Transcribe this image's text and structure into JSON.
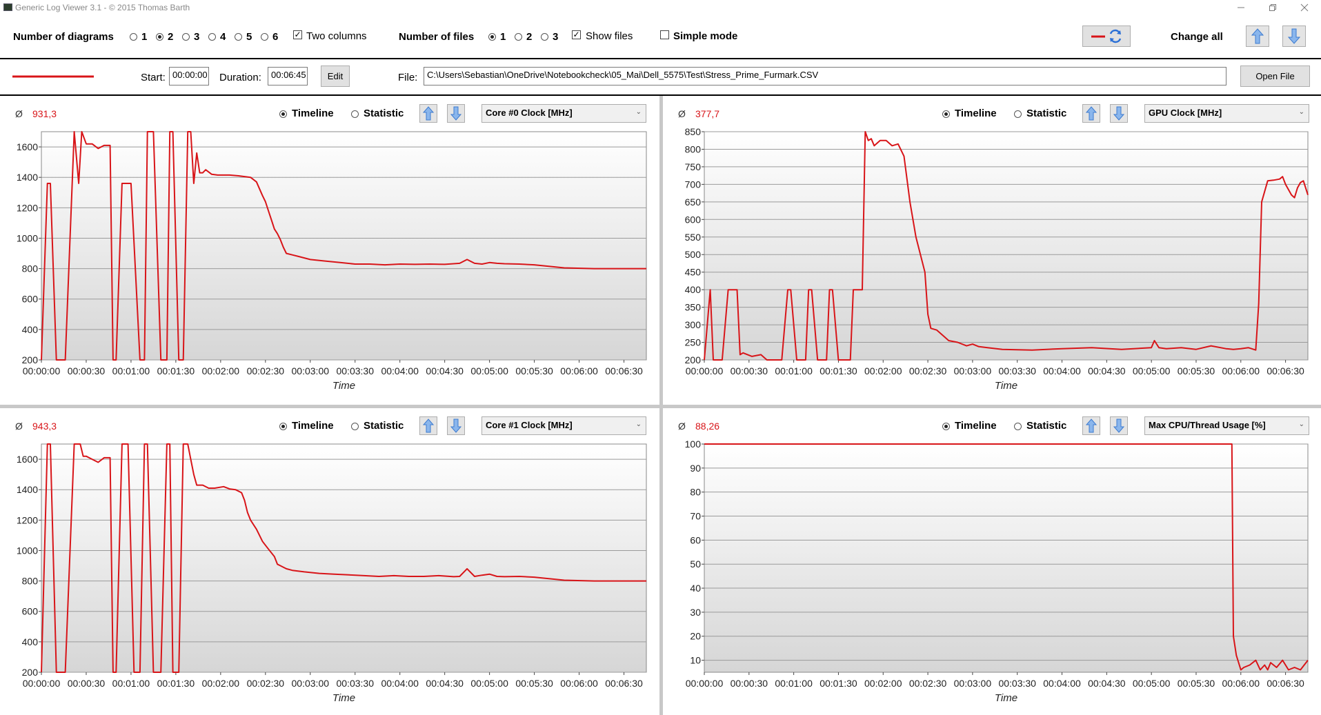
{
  "window": {
    "title": "Generic Log Viewer 3.1 - © 2015 Thomas Barth",
    "minimize_icon": "minimize-icon",
    "restore_icon": "restore-icon",
    "close_icon": "close-icon"
  },
  "toolbar": {
    "num_diagrams_label": "Number of diagrams",
    "diagram_options": [
      "1",
      "2",
      "3",
      "4",
      "5",
      "6"
    ],
    "diagram_selected": "2",
    "two_columns_label": "Two columns",
    "two_columns_checked": true,
    "num_files_label": "Number of files",
    "file_options": [
      "1",
      "2",
      "3"
    ],
    "file_selected": "1",
    "show_files_label": "Show files",
    "show_files_checked": true,
    "simple_mode_label": "Simple mode",
    "simple_mode_checked": false,
    "change_all_label": "Change all",
    "accent_color": "#d81418"
  },
  "file_row": {
    "start_label": "Start:",
    "start_value": "00:00:00",
    "duration_label": "Duration:",
    "duration_value": "00:06:45",
    "edit_label": "Edit",
    "file_label": "File:",
    "file_path": "C:\\Users\\Sebastian\\OneDrive\\Notebookcheck\\05_Mai\\Dell_5575\\Test\\Stress_Prime_Furmark.CSV",
    "open_file_label": "Open File"
  },
  "panels": [
    {
      "avg_symbol": "Ø",
      "avg": "931,3",
      "timeline_label": "Timeline",
      "statistic_label": "Statistic",
      "mode": "Timeline",
      "sensor": "Core #0 Clock [MHz]"
    },
    {
      "avg_symbol": "Ø",
      "avg": "377,7",
      "timeline_label": "Timeline",
      "statistic_label": "Statistic",
      "mode": "Timeline",
      "sensor": "GPU Clock [MHz]"
    },
    {
      "avg_symbol": "Ø",
      "avg": "943,3",
      "timeline_label": "Timeline",
      "statistic_label": "Statistic",
      "mode": "Timeline",
      "sensor": "Core #1 Clock [MHz]"
    },
    {
      "avg_symbol": "Ø",
      "avg": "88,26",
      "timeline_label": "Timeline",
      "statistic_label": "Statistic",
      "mode": "Timeline",
      "sensor": "Max CPU/Thread Usage [%]"
    }
  ],
  "chart_data": [
    {
      "type": "line",
      "xlabel": "Time",
      "ylabel": "",
      "xlim": [
        0,
        405
      ],
      "ylim": [
        200,
        1700
      ],
      "yticks": [
        200,
        400,
        600,
        800,
        1000,
        1200,
        1400,
        1600
      ],
      "xticks": [
        "00:00:00",
        "00:00:30",
        "00:01:00",
        "00:01:30",
        "00:02:00",
        "00:02:30",
        "00:03:00",
        "00:03:30",
        "00:04:00",
        "00:04:30",
        "00:05:00",
        "00:05:30",
        "00:06:00",
        "00:06:30"
      ],
      "grid": true,
      "series": [
        {
          "color": "#d81418",
          "x": [
            0,
            4,
            6,
            10,
            16,
            22,
            25,
            27,
            30,
            34,
            38,
            42,
            46,
            48,
            50,
            54,
            60,
            66,
            69,
            71,
            75,
            80,
            84,
            86,
            88,
            92,
            95,
            98,
            100,
            102,
            104,
            106,
            108,
            110,
            114,
            118,
            126,
            132,
            136,
            140,
            144,
            148,
            150,
            152,
            154,
            156,
            158,
            160,
            162,
            164,
            168,
            172,
            180,
            190,
            200,
            210,
            220,
            230,
            240,
            250,
            260,
            270,
            280,
            285,
            290,
            295,
            300,
            305,
            310,
            320,
            330,
            350,
            370,
            380,
            405
          ],
          "y": [
            200,
            1360,
            1360,
            200,
            200,
            1700,
            1360,
            1700,
            1620,
            1620,
            1590,
            1610,
            1610,
            200,
            200,
            1360,
            1360,
            200,
            200,
            1700,
            1700,
            200,
            200,
            1700,
            1700,
            200,
            200,
            1700,
            1700,
            1360,
            1560,
            1430,
            1430,
            1450,
            1420,
            1415,
            1415,
            1410,
            1405,
            1400,
            1370,
            1280,
            1240,
            1180,
            1120,
            1060,
            1030,
            990,
            940,
            900,
            890,
            880,
            860,
            850,
            840,
            830,
            830,
            825,
            830,
            828,
            830,
            828,
            835,
            860,
            835,
            830,
            840,
            835,
            832,
            830,
            825,
            805,
            800,
            800,
            800
          ]
        }
      ]
    },
    {
      "type": "line",
      "xlabel": "Time",
      "ylabel": "",
      "xlim": [
        0,
        405
      ],
      "ylim": [
        200,
        850
      ],
      "yticks": [
        200,
        250,
        300,
        350,
        400,
        450,
        500,
        550,
        600,
        650,
        700,
        750,
        800,
        850
      ],
      "xticks": [
        "00:00:00",
        "00:00:30",
        "00:01:00",
        "00:01:30",
        "00:02:00",
        "00:02:30",
        "00:03:00",
        "00:03:30",
        "00:04:00",
        "00:04:30",
        "00:05:00",
        "00:05:30",
        "00:06:00",
        "00:06:30"
      ],
      "grid": true,
      "series": [
        {
          "color": "#d81418",
          "x": [
            0,
            4,
            6,
            12,
            16,
            22,
            24,
            26,
            32,
            38,
            42,
            52,
            56,
            58,
            62,
            68,
            70,
            72,
            76,
            82,
            84,
            86,
            90,
            98,
            100,
            102,
            106,
            108,
            110,
            112,
            114,
            118,
            122,
            126,
            130,
            134,
            138,
            142,
            148,
            150,
            152,
            156,
            160,
            164,
            170,
            176,
            180,
            184,
            190,
            196,
            200,
            220,
            240,
            260,
            280,
            300,
            302,
            305,
            310,
            320,
            330,
            340,
            350,
            355,
            360,
            365,
            370,
            372,
            374,
            378,
            382,
            386,
            388,
            390,
            394,
            396,
            398,
            400,
            402,
            405
          ],
          "y": [
            200,
            400,
            200,
            200,
            400,
            400,
            215,
            220,
            210,
            215,
            200,
            200,
            400,
            400,
            200,
            200,
            400,
            400,
            200,
            200,
            400,
            400,
            200,
            200,
            400,
            400,
            400,
            850,
            825,
            830,
            810,
            825,
            825,
            810,
            815,
            780,
            650,
            550,
            450,
            330,
            290,
            285,
            270,
            255,
            250,
            240,
            245,
            238,
            235,
            232,
            230,
            228,
            232,
            235,
            230,
            235,
            255,
            235,
            232,
            235,
            230,
            240,
            232,
            230,
            232,
            235,
            228,
            360,
            650,
            710,
            712,
            715,
            722,
            700,
            670,
            662,
            690,
            705,
            710,
            670
          ]
        }
      ]
    },
    {
      "type": "line",
      "xlabel": "Time",
      "ylabel": "",
      "xlim": [
        0,
        405
      ],
      "ylim": [
        200,
        1700
      ],
      "yticks": [
        200,
        400,
        600,
        800,
        1000,
        1200,
        1400,
        1600
      ],
      "xticks": [
        "00:00:00",
        "00:00:30",
        "00:01:00",
        "00:01:30",
        "00:02:00",
        "00:02:30",
        "00:03:00",
        "00:03:30",
        "00:04:00",
        "00:04:30",
        "00:05:00",
        "00:05:30",
        "00:06:00",
        "00:06:30"
      ],
      "grid": true,
      "series": [
        {
          "color": "#d81418",
          "x": [
            0,
            4,
            6,
            10,
            16,
            22,
            26,
            28,
            30,
            34,
            38,
            42,
            46,
            48,
            50,
            54,
            58,
            62,
            66,
            69,
            71,
            75,
            80,
            84,
            86,
            88,
            92,
            95,
            98,
            100,
            102,
            104,
            106,
            108,
            112,
            116,
            122,
            126,
            130,
            134,
            136,
            138,
            140,
            144,
            148,
            152,
            156,
            158,
            160,
            164,
            168,
            176,
            186,
            196,
            206,
            216,
            226,
            236,
            246,
            256,
            266,
            276,
            280,
            285,
            290,
            295,
            300,
            305,
            310,
            320,
            330,
            350,
            370,
            380,
            405
          ],
          "y": [
            200,
            1700,
            1700,
            200,
            200,
            1700,
            1700,
            1620,
            1620,
            1600,
            1580,
            1610,
            1610,
            200,
            200,
            1700,
            1700,
            200,
            200,
            1700,
            1700,
            200,
            200,
            1700,
            1700,
            200,
            200,
            1700,
            1700,
            1600,
            1500,
            1430,
            1430,
            1430,
            1410,
            1410,
            1420,
            1405,
            1400,
            1380,
            1330,
            1250,
            1200,
            1140,
            1060,
            1010,
            960,
            910,
            900,
            880,
            870,
            860,
            850,
            845,
            840,
            835,
            830,
            835,
            830,
            830,
            835,
            828,
            830,
            880,
            830,
            838,
            845,
            830,
            828,
            830,
            825,
            805,
            800,
            800,
            800
          ]
        }
      ]
    },
    {
      "type": "line",
      "xlabel": "Time",
      "ylabel": "",
      "xlim": [
        0,
        405
      ],
      "ylim": [
        5,
        100
      ],
      "yticks": [
        10,
        20,
        30,
        40,
        50,
        60,
        70,
        80,
        90,
        100
      ],
      "xticks": [
        "00:00:00",
        "00:00:30",
        "00:01:00",
        "00:01:30",
        "00:02:00",
        "00:02:30",
        "00:03:00",
        "00:03:30",
        "00:04:00",
        "00:04:30",
        "00:05:00",
        "00:05:30",
        "00:06:00",
        "00:06:30"
      ],
      "grid": true,
      "series": [
        {
          "color": "#d81418",
          "x": [
            0,
            40,
            80,
            120,
            160,
            200,
            240,
            280,
            320,
            350,
            354,
            355,
            357,
            360,
            362,
            366,
            370,
            373,
            376,
            378,
            380,
            384,
            388,
            392,
            396,
            400,
            405
          ],
          "y": [
            100,
            100,
            100,
            100,
            100,
            100,
            100,
            100,
            100,
            100,
            100,
            20,
            12,
            6,
            7,
            8,
            10,
            6,
            8,
            6,
            9,
            7,
            10,
            6,
            7,
            6,
            10
          ]
        }
      ]
    }
  ]
}
